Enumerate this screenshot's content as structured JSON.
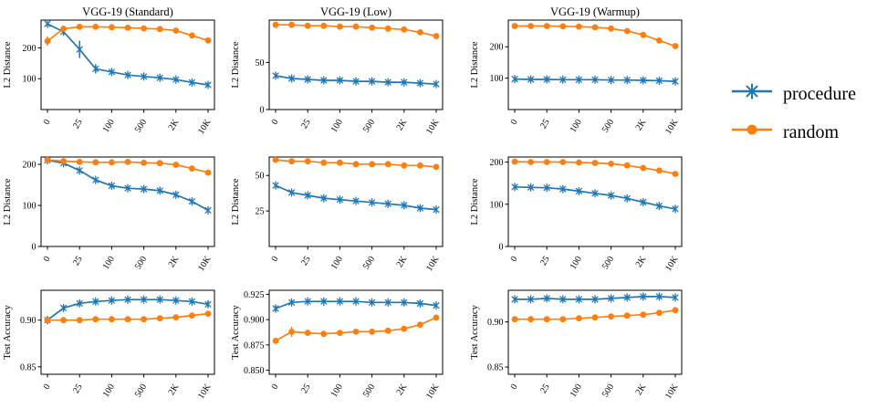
{
  "figure": {
    "background": "#ffffff",
    "colors": {
      "procedure": "#1f77b4",
      "random": "#ff7f0e"
    }
  },
  "legend": {
    "items": [
      {
        "label": "procedure",
        "color": "#1f77b4",
        "marker": "star"
      },
      {
        "label": "random",
        "color": "#ff7f0e",
        "marker": "circle"
      }
    ]
  },
  "x_axis": {
    "labels": [
      "0",
      "25",
      "100",
      "500",
      "2K",
      "10K"
    ],
    "indices": [
      0,
      2,
      4,
      6,
      8,
      10
    ]
  },
  "chart_data": [
    {
      "type": "line",
      "title": "VGG-19 (Standard)",
      "ylabel": "L2 Distance",
      "ylim": [
        0,
        290
      ],
      "yticks": [
        {
          "v": 100,
          "label": "100"
        },
        {
          "v": 200,
          "label": "200"
        }
      ],
      "series": [
        {
          "name": "procedure",
          "color": "#1f77b4",
          "marker": "star",
          "values": [
            278,
            252,
            195,
            132,
            122,
            112,
            107,
            103,
            97,
            88,
            80
          ],
          "yerr": [
            4,
            10,
            28,
            15,
            5,
            3,
            2,
            2,
            2,
            2,
            2
          ]
        },
        {
          "name": "random",
          "color": "#ff7f0e",
          "marker": "circle",
          "values": [
            222,
            262,
            268,
            268,
            267,
            265,
            263,
            261,
            256,
            240,
            224
          ],
          "yerr": [
            15,
            4,
            2,
            2,
            2,
            2,
            2,
            2,
            2,
            2,
            3
          ]
        }
      ]
    },
    {
      "type": "line",
      "title": "VGG-19 (Low)",
      "ylabel": "L2 Distance",
      "ylim": [
        0,
        95
      ],
      "yticks": [
        {
          "v": 0,
          "label": "0"
        },
        {
          "v": 50,
          "label": "50"
        }
      ],
      "series": [
        {
          "name": "procedure",
          "color": "#1f77b4",
          "marker": "star",
          "values": [
            36,
            33,
            32,
            31,
            31,
            30,
            30,
            29,
            29,
            28,
            27
          ]
        },
        {
          "name": "random",
          "color": "#ff7f0e",
          "marker": "circle",
          "values": [
            90,
            90,
            89,
            89,
            88,
            88,
            87,
            86,
            85,
            82,
            78
          ]
        }
      ]
    },
    {
      "type": "line",
      "title": "VGG-19 (Warmup)",
      "ylabel": "L2 Distance",
      "ylim": [
        0,
        285
      ],
      "yticks": [
        {
          "v": 100,
          "label": "100"
        },
        {
          "v": 200,
          "label": "200"
        }
      ],
      "series": [
        {
          "name": "procedure",
          "color": "#1f77b4",
          "marker": "star",
          "values": [
            97,
            96,
            96,
            95,
            95,
            95,
            94,
            94,
            93,
            92,
            90
          ]
        },
        {
          "name": "random",
          "color": "#ff7f0e",
          "marker": "circle",
          "values": [
            266,
            266,
            266,
            265,
            264,
            262,
            258,
            250,
            238,
            220,
            202
          ]
        }
      ]
    },
    {
      "type": "line",
      "title": "",
      "ylabel": "L2 Distance",
      "ylim": [
        0,
        218
      ],
      "yticks": [
        {
          "v": 0,
          "label": "0"
        },
        {
          "v": 100,
          "label": "100"
        },
        {
          "v": 200,
          "label": "200"
        }
      ],
      "series": [
        {
          "name": "procedure",
          "color": "#1f77b4",
          "marker": "star",
          "values": [
            210,
            203,
            185,
            162,
            148,
            142,
            140,
            136,
            126,
            110,
            88
          ]
        },
        {
          "name": "random",
          "color": "#ff7f0e",
          "marker": "circle",
          "values": [
            211,
            208,
            206,
            205,
            205,
            206,
            204,
            203,
            199,
            190,
            180
          ]
        }
      ]
    },
    {
      "type": "line",
      "title": "",
      "ylabel": "L2 Distance",
      "ylim": [
        0,
        63
      ],
      "yticks": [
        {
          "v": 25,
          "label": "25"
        },
        {
          "v": 50,
          "label": "50"
        }
      ],
      "series": [
        {
          "name": "procedure",
          "color": "#1f77b4",
          "marker": "star",
          "values": [
            43,
            38,
            36,
            34,
            33,
            32,
            31,
            30,
            29,
            27,
            26
          ]
        },
        {
          "name": "random",
          "color": "#ff7f0e",
          "marker": "circle",
          "values": [
            61,
            60,
            60,
            59,
            59,
            58,
            58,
            58,
            57,
            57,
            56
          ]
        }
      ]
    },
    {
      "type": "line",
      "title": "",
      "ylabel": "L2 Distance",
      "ylim": [
        0,
        212
      ],
      "yticks": [
        {
          "v": 0,
          "label": "0"
        },
        {
          "v": 100,
          "label": "100"
        },
        {
          "v": 200,
          "label": "200"
        }
      ],
      "series": [
        {
          "name": "procedure",
          "color": "#1f77b4",
          "marker": "star",
          "values": [
            141,
            140,
            139,
            136,
            131,
            126,
            121,
            114,
            105,
            96,
            89
          ]
        },
        {
          "name": "random",
          "color": "#ff7f0e",
          "marker": "circle",
          "values": [
            201,
            200,
            200,
            200,
            199,
            198,
            196,
            192,
            186,
            180,
            172
          ]
        }
      ]
    },
    {
      "type": "line",
      "title": "",
      "ylabel": "Test Accuracy",
      "ylim": [
        0.842,
        0.932
      ],
      "yticks": [
        {
          "v": 0.85,
          "label": "0.85"
        },
        {
          "v": 0.9,
          "label": "0.90"
        }
      ],
      "series": [
        {
          "name": "procedure",
          "color": "#1f77b4",
          "marker": "star",
          "values": [
            0.9,
            0.913,
            0.918,
            0.92,
            0.921,
            0.922,
            0.922,
            0.922,
            0.921,
            0.92,
            0.917
          ],
          "yerr": [
            0.004,
            0.003,
            0.002,
            0.002,
            0.002,
            0.002,
            0.002,
            0.002,
            0.002,
            0.002,
            0.003
          ]
        },
        {
          "name": "random",
          "color": "#ff7f0e",
          "marker": "circle",
          "values": [
            0.9,
            0.9,
            0.9,
            0.901,
            0.901,
            0.901,
            0.901,
            0.902,
            0.903,
            0.905,
            0.907
          ],
          "yerr": [
            0.002,
            0.002,
            0.002,
            0.002,
            0.002,
            0.002,
            0.002,
            0.002,
            0.002,
            0.002,
            0.002
          ]
        }
      ]
    },
    {
      "type": "line",
      "title": "",
      "ylabel": "Test Accuracy",
      "ylim": [
        0.846,
        0.929
      ],
      "yticks": [
        {
          "v": 0.85,
          "label": "0.850"
        },
        {
          "v": 0.875,
          "label": "0.875"
        },
        {
          "v": 0.9,
          "label": "0.900"
        },
        {
          "v": 0.925,
          "label": "0.925"
        }
      ],
      "series": [
        {
          "name": "procedure",
          "color": "#1f77b4",
          "marker": "star",
          "values": [
            0.911,
            0.917,
            0.918,
            0.918,
            0.918,
            0.918,
            0.917,
            0.917,
            0.917,
            0.916,
            0.914
          ],
          "yerr": [
            0.003,
            0.002,
            0.001,
            0.001,
            0.001,
            0.001,
            0.001,
            0.001,
            0.001,
            0.001,
            0.001
          ]
        },
        {
          "name": "random",
          "color": "#ff7f0e",
          "marker": "circle",
          "values": [
            0.879,
            0.888,
            0.887,
            0.886,
            0.887,
            0.888,
            0.888,
            0.889,
            0.891,
            0.895,
            0.902
          ],
          "yerr": [
            0.003,
            0.005,
            0.003,
            0.002,
            0.002,
            0.002,
            0.002,
            0.002,
            0.002,
            0.002,
            0.002
          ]
        }
      ]
    },
    {
      "type": "line",
      "title": "",
      "ylabel": "Test Accuracy",
      "ylim": [
        0.842,
        0.935
      ],
      "yticks": [
        {
          "v": 0.85,
          "label": "0.85"
        },
        {
          "v": 0.9,
          "label": "0.90"
        }
      ],
      "series": [
        {
          "name": "procedure",
          "color": "#1f77b4",
          "marker": "star",
          "values": [
            0.925,
            0.925,
            0.926,
            0.925,
            0.925,
            0.925,
            0.926,
            0.927,
            0.928,
            0.928,
            0.927
          ]
        },
        {
          "name": "random",
          "color": "#ff7f0e",
          "marker": "circle",
          "values": [
            0.903,
            0.903,
            0.903,
            0.903,
            0.904,
            0.905,
            0.906,
            0.907,
            0.908,
            0.91,
            0.913
          ]
        }
      ]
    }
  ]
}
